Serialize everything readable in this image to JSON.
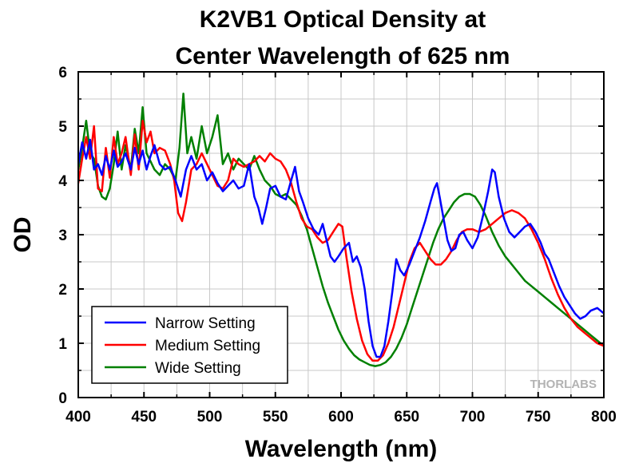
{
  "chart_data": {
    "type": "line",
    "title_lines": [
      "K2VB1 Optical Density at",
      "Center Wavelength of 625 nm"
    ],
    "xlabel": "Wavelength (nm)",
    "ylabel": "OD",
    "xlim": [
      400,
      800
    ],
    "ylim": [
      0,
      6
    ],
    "xticks": [
      400,
      450,
      500,
      550,
      600,
      650,
      700,
      750,
      800
    ],
    "yticks": [
      0,
      1,
      2,
      3,
      4,
      5,
      6
    ],
    "grid": true,
    "legend_position": "bottom-left",
    "series": [
      {
        "name": "Narrow Setting",
        "color": "#0000ff",
        "x": [
          400,
          403,
          406,
          409,
          412,
          415,
          418,
          421,
          424,
          427,
          430,
          433,
          436,
          440,
          443,
          446,
          449,
          452,
          455,
          458,
          462,
          466,
          470,
          474,
          478,
          482,
          486,
          490,
          494,
          498,
          502,
          506,
          510,
          514,
          518,
          522,
          526,
          530,
          534,
          537,
          540,
          543,
          546,
          550,
          554,
          558,
          562,
          565,
          568,
          571,
          575,
          579,
          583,
          586,
          589,
          592,
          595,
          598,
          602,
          606,
          609,
          612,
          615,
          618,
          621,
          624,
          627,
          630,
          633,
          636,
          639,
          642,
          645,
          648,
          652,
          656,
          660,
          664,
          668,
          671,
          673,
          675,
          678,
          681,
          684,
          687,
          690,
          693,
          696,
          700,
          704,
          708,
          712,
          715,
          717,
          720,
          724,
          728,
          732,
          736,
          740,
          744,
          748,
          752,
          755,
          758,
          762,
          766,
          770,
          774,
          778,
          782,
          786,
          790,
          795,
          800
        ],
        "y": [
          4.3,
          4.7,
          4.4,
          4.75,
          4.2,
          4.3,
          4.1,
          4.45,
          4.2,
          4.55,
          4.25,
          4.35,
          4.5,
          4.2,
          4.6,
          4.3,
          4.55,
          4.2,
          4.45,
          4.65,
          4.3,
          4.2,
          4.25,
          4.0,
          3.7,
          4.2,
          4.45,
          4.2,
          4.3,
          4.0,
          4.15,
          3.95,
          3.8,
          3.9,
          4.0,
          3.85,
          3.9,
          4.3,
          3.7,
          3.5,
          3.2,
          3.5,
          3.85,
          3.9,
          3.7,
          3.65,
          4.0,
          4.25,
          3.8,
          3.6,
          3.3,
          3.1,
          3.0,
          3.2,
          2.9,
          2.6,
          2.5,
          2.6,
          2.75,
          2.85,
          2.5,
          2.6,
          2.4,
          2.0,
          1.4,
          0.95,
          0.75,
          0.75,
          0.95,
          1.4,
          1.95,
          2.55,
          2.35,
          2.25,
          2.45,
          2.7,
          2.95,
          3.25,
          3.6,
          3.85,
          3.95,
          3.7,
          3.3,
          2.9,
          2.7,
          2.75,
          3.0,
          3.05,
          2.9,
          2.75,
          2.95,
          3.35,
          3.8,
          4.2,
          4.15,
          3.7,
          3.3,
          3.05,
          2.95,
          3.05,
          3.15,
          3.2,
          3.05,
          2.85,
          2.65,
          2.55,
          2.3,
          2.05,
          1.85,
          1.7,
          1.55,
          1.45,
          1.5,
          1.6,
          1.65,
          1.55
        ]
      },
      {
        "name": "Medium Setting",
        "color": "#ff0000",
        "x": [
          400,
          403,
          406,
          409,
          412,
          415,
          418,
          421,
          424,
          427,
          430,
          433,
          436,
          440,
          443,
          446,
          449,
          452,
          455,
          458,
          462,
          466,
          470,
          473,
          476,
          479,
          482,
          486,
          490,
          494,
          498,
          502,
          506,
          510,
          514,
          518,
          522,
          526,
          530,
          534,
          538,
          542,
          546,
          550,
          554,
          558,
          562,
          566,
          570,
          574,
          578,
          582,
          586,
          590,
          594,
          598,
          601,
          604,
          608,
          612,
          616,
          620,
          624,
          628,
          632,
          636,
          640,
          644,
          648,
          652,
          656,
          660,
          664,
          668,
          672,
          676,
          680,
          684,
          688,
          692,
          696,
          700,
          705,
          710,
          715,
          720,
          725,
          730,
          735,
          740,
          745,
          750,
          755,
          760,
          765,
          770,
          775,
          780,
          785,
          790,
          795,
          800
        ],
        "y": [
          3.95,
          4.4,
          4.8,
          4.4,
          5.0,
          3.85,
          3.8,
          4.6,
          4.05,
          4.8,
          4.3,
          4.5,
          4.8,
          4.1,
          4.85,
          4.2,
          5.1,
          4.7,
          4.9,
          4.5,
          4.6,
          4.55,
          4.3,
          4.0,
          3.4,
          3.25,
          3.6,
          4.2,
          4.3,
          4.5,
          4.3,
          4.1,
          3.9,
          3.85,
          4.0,
          4.4,
          4.3,
          4.25,
          4.3,
          4.35,
          4.45,
          4.35,
          4.5,
          4.4,
          4.35,
          4.2,
          3.95,
          3.6,
          3.3,
          3.15,
          3.1,
          2.95,
          2.85,
          2.9,
          3.05,
          3.2,
          3.15,
          2.6,
          1.95,
          1.45,
          1.05,
          0.8,
          0.68,
          0.68,
          0.78,
          1.0,
          1.3,
          1.7,
          2.1,
          2.5,
          2.75,
          2.85,
          2.7,
          2.55,
          2.45,
          2.45,
          2.55,
          2.7,
          2.9,
          3.05,
          3.1,
          3.1,
          3.05,
          3.1,
          3.2,
          3.3,
          3.4,
          3.45,
          3.4,
          3.3,
          3.1,
          2.85,
          2.55,
          2.2,
          1.9,
          1.65,
          1.45,
          1.3,
          1.2,
          1.1,
          1.0,
          0.95
        ]
      },
      {
        "name": "Wide Setting",
        "color": "#008000",
        "x": [
          400,
          403,
          406,
          409,
          412,
          415,
          418,
          421,
          424,
          427,
          430,
          433,
          436,
          440,
          443,
          446,
          449,
          452,
          455,
          458,
          462,
          466,
          470,
          474,
          477,
          480,
          483,
          486,
          490,
          494,
          498,
          502,
          506,
          510,
          514,
          518,
          522,
          526,
          530,
          534,
          538,
          542,
          546,
          550,
          554,
          558,
          562,
          566,
          570,
          574,
          578,
          582,
          586,
          590,
          594,
          598,
          602,
          606,
          610,
          614,
          618,
          622,
          626,
          630,
          634,
          638,
          642,
          646,
          650,
          654,
          658,
          662,
          666,
          670,
          674,
          678,
          682,
          686,
          690,
          694,
          698,
          702,
          706,
          710,
          715,
          720,
          725,
          730,
          735,
          740,
          745,
          750,
          755,
          760,
          765,
          770,
          775,
          780,
          785,
          790,
          795,
          800
        ],
        "y": [
          4.2,
          4.6,
          5.1,
          4.5,
          4.4,
          3.9,
          3.7,
          3.65,
          3.85,
          4.3,
          4.9,
          4.2,
          4.65,
          4.2,
          4.95,
          4.5,
          5.35,
          4.5,
          4.35,
          4.2,
          4.1,
          4.3,
          4.2,
          4.0,
          4.6,
          5.6,
          4.5,
          4.8,
          4.4,
          5.0,
          4.5,
          4.8,
          5.2,
          4.3,
          4.5,
          4.2,
          4.4,
          4.3,
          4.2,
          4.45,
          4.2,
          4.0,
          3.9,
          3.75,
          3.7,
          3.75,
          3.65,
          3.55,
          3.35,
          3.1,
          2.75,
          2.4,
          2.05,
          1.75,
          1.5,
          1.25,
          1.05,
          0.9,
          0.78,
          0.7,
          0.65,
          0.6,
          0.58,
          0.6,
          0.65,
          0.75,
          0.9,
          1.1,
          1.35,
          1.65,
          1.95,
          2.25,
          2.55,
          2.85,
          3.1,
          3.3,
          3.45,
          3.6,
          3.7,
          3.75,
          3.75,
          3.7,
          3.55,
          3.35,
          3.05,
          2.8,
          2.6,
          2.45,
          2.3,
          2.15,
          2.05,
          1.95,
          1.85,
          1.75,
          1.65,
          1.55,
          1.45,
          1.35,
          1.25,
          1.15,
          1.05,
          0.95
        ]
      }
    ]
  },
  "watermark": "THORLABS"
}
